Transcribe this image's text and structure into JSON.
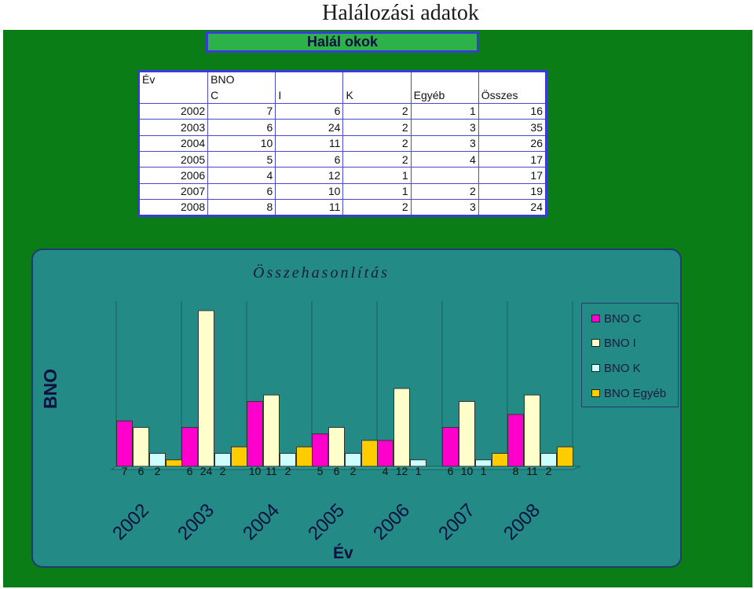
{
  "page": {
    "title": "Halálozási adatok",
    "subtitle": "Halál okok"
  },
  "table": {
    "header_row1": [
      "Év",
      "BNO",
      "",
      "",
      "",
      ""
    ],
    "header_row2": [
      "",
      "C",
      "I",
      "K",
      "Egyéb",
      "Összes"
    ],
    "rows": [
      [
        "2002",
        "7",
        "6",
        "2",
        "1",
        "16"
      ],
      [
        "2003",
        "6",
        "24",
        "2",
        "3",
        "35"
      ],
      [
        "2004",
        "10",
        "11",
        "2",
        "3",
        "26"
      ],
      [
        "2005",
        "5",
        "6",
        "2",
        "4",
        "17"
      ],
      [
        "2006",
        "4",
        "12",
        "1",
        "",
        "17"
      ],
      [
        "2007",
        "6",
        "10",
        "1",
        "2",
        "19"
      ],
      [
        "2008",
        "8",
        "11",
        "2",
        "3",
        "24"
      ]
    ]
  },
  "colors": {
    "panel": "#0b7d17",
    "chart_bg": "#238a85",
    "bno_c": "#ff00cc",
    "bno_i": "#ffffcc",
    "bno_k": "#ccffff",
    "bno_egyeb": "#ffcc00"
  },
  "chart_data": {
    "type": "bar",
    "title": "Összehasonlítás",
    "xlabel": "Év",
    "ylabel": "BNO",
    "categories": [
      "2002",
      "2003",
      "2004",
      "2005",
      "2006",
      "2007",
      "2008"
    ],
    "series": [
      {
        "name": "BNO C",
        "values": [
          7,
          6,
          10,
          5,
          4,
          6,
          8
        ]
      },
      {
        "name": "BNO I",
        "values": [
          6,
          24,
          11,
          6,
          12,
          10,
          11
        ]
      },
      {
        "name": "BNO K",
        "values": [
          2,
          2,
          2,
          2,
          1,
          1,
          2
        ]
      },
      {
        "name": "BNO Egyéb",
        "values": [
          1,
          3,
          3,
          4,
          0,
          2,
          3
        ]
      }
    ],
    "data_labels_shown_for": [
      "BNO C",
      "BNO I",
      "BNO K"
    ],
    "legend": "right",
    "grid": true,
    "three_d_floor": true
  }
}
